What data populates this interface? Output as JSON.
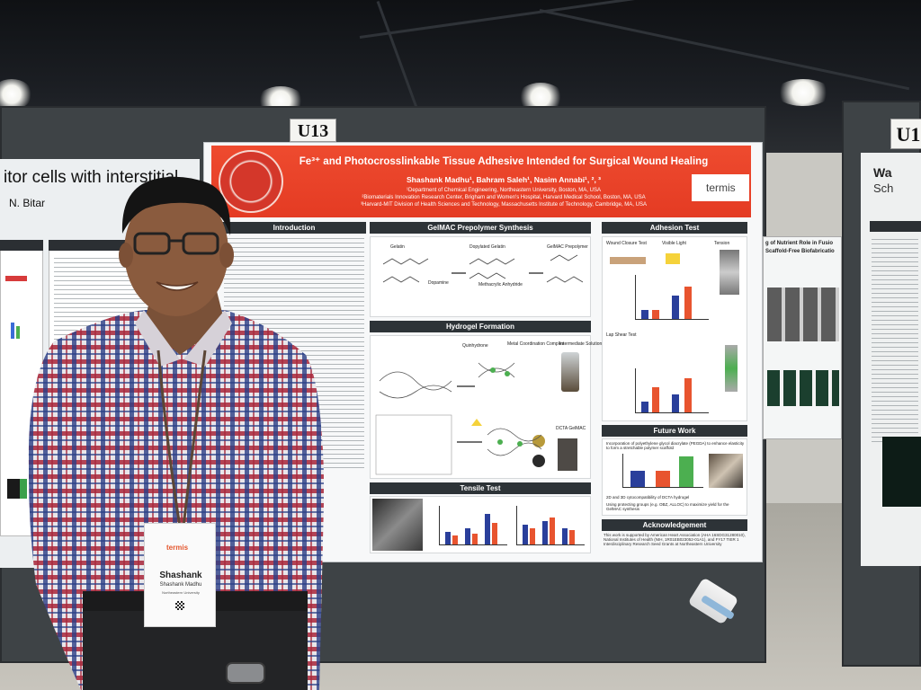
{
  "booth": {
    "left_tag": "U13",
    "right_tag": "U1"
  },
  "left_poster": {
    "title": "itor cells with interstitial",
    "author": "N. Bitar"
  },
  "right_poster": {
    "logo_text": "Wa",
    "logo_sub": "Sch"
  },
  "mid_poster": {
    "title": "g of Nutrient Role in Fusio",
    "subtitle": "Scaffold-Free Biofabricatio"
  },
  "poster": {
    "title": "Fe³⁺ and Photocrosslinkable Tissue Adhesive Intended for Surgical Wound Healing",
    "authors": "Shashank Madhu¹, Bahram Saleh¹, Nasim Annabi¹, ², ³",
    "affiliations": [
      "¹Department of Chemical Engineering, Northeastern University, Boston, MA, USA",
      "²Biomaterials Innovation Research Center, Brigham and Women's Hospital, Harvard Medical School, Boston, MA, USA",
      "³Harvard-MIT Division of Health Sciences and Technology, Massachusetts Institute of Technology, Cambridge, MA, USA"
    ],
    "logo": "termis",
    "sections": {
      "introduction": "Introduction",
      "synthesis": "GelMAC Prepolymer Synthesis",
      "hydrogel": "Hydrogel Formation",
      "tensile": "Tensile Test",
      "adhesion": "Adhesion Test",
      "future": "Future Work",
      "acknowledgement": "Acknowledgement"
    },
    "labels": {
      "gelatin": "Gelatin",
      "dopamine": "Dopamine",
      "doped_gelatin": "Dopylated Gelatin",
      "methacrylic": "Methacrylic Anhydride",
      "gelmac": "GelMAC Prepolymer",
      "wound_closure": "Wound Closure Test",
      "lap_shear": "Lap Shear Test",
      "visible_light": "Visible Light",
      "tension": "Tension",
      "quinhydrone": "Quinhydrone",
      "metal_complex": "Metal Coordination Complex",
      "intermediate": "Intermediate Solution",
      "dcta": "DCTA GelMAC"
    },
    "future_items": [
      "Incorporation of polyethylene glycol diacrylate (PEGDA) to enhance elasticity to form a stretchable polymer scaffold",
      "2D and 3D cytocompatibility of DCTA hydrogel",
      "Using protecting groups (e.g. OBZ, ALLOC) to maximize yield for the GelMAC synthesis"
    ],
    "acknowledgement_text": "This work is supported by American Heart Association (AHA 16SDG31280010), National Institutes of Health (NIH, 1R01EB023052-01A1), and FY17 TIER 1 Interdisciplinary Research Seed Grants at Northeastern University"
  },
  "badge": {
    "logo": "termis",
    "first_name": "Shashank",
    "full_name": "Shashank Madhu",
    "affiliation": "Northeastern University"
  },
  "colors": {
    "banner": "#e43b23",
    "section_head": "#2d3337",
    "shirt_red": "#a8273a",
    "shirt_blue": "#2a3f86"
  }
}
